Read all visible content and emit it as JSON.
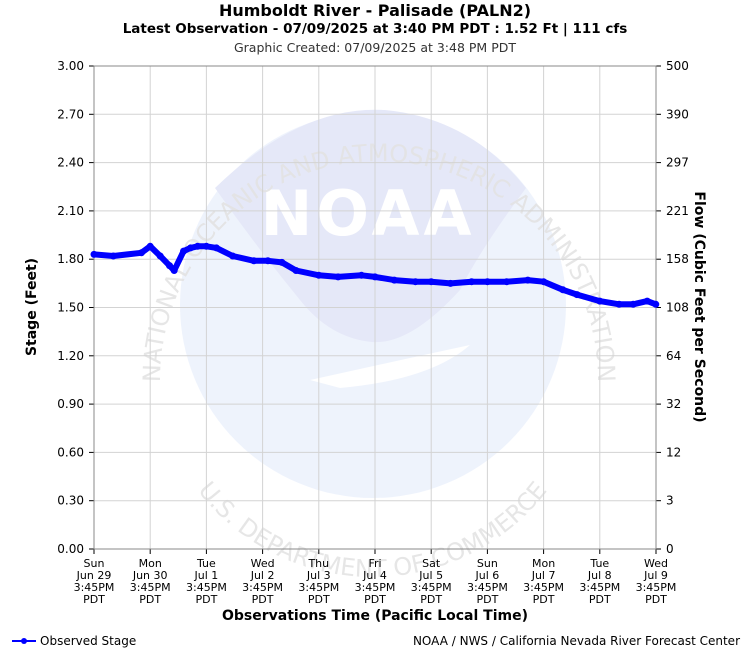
{
  "chart_data": {
    "type": "line",
    "title": "Humboldt River - Palisade (PALN2)",
    "subtitle": "Latest Observation - 07/09/2025 at 3:40 PM PDT : 1.52 Ft | 111 cfs",
    "created": "Graphic Created: 07/09/2025 at 3:48 PM PDT",
    "xlabel": "Observations Time (Pacific Local Time)",
    "ylabel": "Stage (Feet)",
    "ylabel_right": "Flow (Cubic Feet per Second)",
    "ylim": [
      0,
      3
    ],
    "yticks": [
      "0.00",
      "0.30",
      "0.60",
      "0.90",
      "1.20",
      "1.50",
      "1.80",
      "2.10",
      "2.40",
      "2.70",
      "3.00"
    ],
    "yticks_right": [
      "0",
      "3",
      "12",
      "32",
      "64",
      "108",
      "158",
      "221",
      "297",
      "390",
      "500"
    ],
    "xticks": [
      [
        "Sun",
        "Jun 29",
        "3:45PM",
        "PDT"
      ],
      [
        "Mon",
        "Jun 30",
        "3:45PM",
        "PDT"
      ],
      [
        "Tue",
        "Jul 1",
        "3:45PM",
        "PDT"
      ],
      [
        "Wed",
        "Jul 2",
        "3:45PM",
        "PDT"
      ],
      [
        "Thu",
        "Jul 3",
        "3:45PM",
        "PDT"
      ],
      [
        "Fri",
        "Jul 4",
        "3:45PM",
        "PDT"
      ],
      [
        "Sat",
        "Jul 5",
        "3:45PM",
        "PDT"
      ],
      [
        "Sun",
        "Jul 6",
        "3:45PM",
        "PDT"
      ],
      [
        "Mon",
        "Jul 7",
        "3:45PM",
        "PDT"
      ],
      [
        "Tue",
        "Jul 8",
        "3:45PM",
        "PDT"
      ],
      [
        "Wed",
        "Jul 9",
        "3:45PM",
        "PDT"
      ]
    ],
    "grid": true,
    "legend": "bottom-left",
    "series": [
      {
        "name": "Observed Stage",
        "color": "#0000ff",
        "x": [
          "06/29 15:45",
          "06/30 00:00",
          "06/30 12:00",
          "06/30 15:45",
          "06/30 20:00",
          "07/01 00:00",
          "07/01 02:00",
          "07/01 06:00",
          "07/01 09:00",
          "07/01 12:00",
          "07/01 15:45",
          "07/01 20:00",
          "07/02 03:00",
          "07/02 12:00",
          "07/02 18:00",
          "07/03 00:00",
          "07/03 06:00",
          "07/03 15:45",
          "07/04 00:00",
          "07/04 10:00",
          "07/04 15:45",
          "07/05 00:00",
          "07/05 09:00",
          "07/05 15:45",
          "07/06 00:00",
          "07/06 09:00",
          "07/06 15:45",
          "07/07 00:00",
          "07/07 09:00",
          "07/07 15:45",
          "07/08 00:00",
          "07/08 06:00",
          "07/08 15:45",
          "07/09 00:00",
          "07/09 06:00",
          "07/09 12:00",
          "07/09 15:40"
        ],
        "y": [
          1.83,
          1.82,
          1.84,
          1.88,
          1.82,
          1.76,
          1.73,
          1.85,
          1.87,
          1.88,
          1.88,
          1.87,
          1.82,
          1.79,
          1.79,
          1.78,
          1.73,
          1.7,
          1.69,
          1.7,
          1.69,
          1.67,
          1.66,
          1.66,
          1.65,
          1.66,
          1.66,
          1.66,
          1.67,
          1.66,
          1.61,
          1.58,
          1.54,
          1.52,
          1.52,
          1.54,
          1.52
        ]
      }
    ]
  },
  "legend_label": "Observed Stage",
  "credit": "NOAA / NWS / California Nevada River Forecast Center",
  "watermark": {
    "logo_text": "NOAA",
    "ring_text": "NATIONAL OCEANIC AND ATMOSPHERIC ADMINISTRATION",
    "bottom_text": "U.S. DEPARTMENT OF COMMERCE"
  }
}
